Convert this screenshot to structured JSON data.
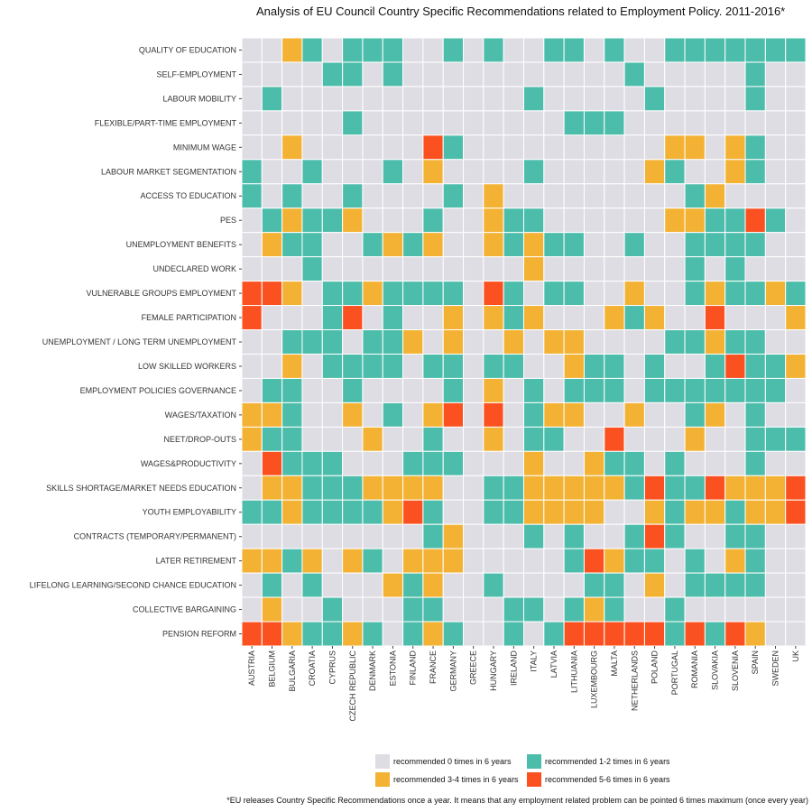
{
  "title": "Analysis of EU Council Country Specific Recommendations related to Employment Policy. 2011-2016*",
  "footnote": "*EU releases Country Specific Recommendations once a year. It means that any employment related problem can be pointed 6 times maximum (once every year)",
  "colors": {
    "0": "#dfdde4",
    "1": "#4dbdab",
    "2": "#f3b233",
    "3": "#fb5121",
    "grid": "#ffffff",
    "tick": "#444444"
  },
  "legend": [
    {
      "level": 0,
      "label": "recommended 0 times in 6 years"
    },
    {
      "level": 1,
      "label": "recommended 1-2 times in 6 years"
    },
    {
      "level": 2,
      "label": "recommended 3-4 times in 6 years"
    },
    {
      "level": 3,
      "label": "recommended 5-6 times in 6 years"
    }
  ],
  "chart_data": {
    "type": "heatmap",
    "title": "Analysis of EU Council Country Specific Recommendations related to Employment Policy. 2011-2016*",
    "x": [
      "AUSTRIA",
      "BELGIUM",
      "BULGARIA",
      "CROATIA",
      "CYPRUS",
      "CZECH REPUBLIC",
      "DENMARK",
      "ESTONIA",
      "FINLAND",
      "FRANCE",
      "GERMANY",
      "GREECE",
      "HUNGARY",
      "IRELAND",
      "ITALY",
      "LATVIA",
      "LITHUANIA",
      "LUXEMBOURG",
      "MALTA",
      "NETHERLANDS",
      "POLAND",
      "PORTUGAL",
      "ROMANIA",
      "SLOVAKIA",
      "SLOVENIA",
      "SPAIN",
      "SWEDEN",
      "UK"
    ],
    "y": [
      "QUALITY OF EDUCATION",
      "SELF-EMPLOYMENT",
      "LABOUR MOBILITY",
      "FLEXIBLE/PART-TIME EMPLOYMENT",
      "MINIMUM WAGE",
      "LABOUR MARKET SEGMENTATION",
      "ACCESS TO EDUCATION",
      "PES",
      "UNEMPLOYMENT BENEFITS",
      "UNDECLARED WORK",
      "VULNERABLE GROUPS EMPLOYMENT",
      "FEMALE PARTICIPATION",
      "UNEMPLOYMENT / LONG TERM UNEMPLOYMENT",
      "LOW SKILLED WORKERS",
      "EMPLOYMENT POLICIES GOVERNANCE",
      "WAGES/TAXATION",
      "NEET/DROP-OUTS",
      "WAGES&PRODUCTIVITY",
      "SKILLS SHORTAGE/MARKET NEEDS EDUCATION",
      "YOUTH EMPLOYABILITY",
      "CONTRACTS (TEMPORARY/PERMANENT)",
      "LATER RETIREMENT",
      "LIFELONG LEARNING/SECOND CHANCE EDUCATION",
      "COLLECTIVE BARGAINING",
      "PENSION REFORM"
    ],
    "levels": [
      "recommended 0 times in 6 years",
      "recommended 1-2 times in 6 years",
      "recommended 3-4 times in 6 years",
      "recommended 5-6 times in 6 years"
    ],
    "values": [
      [
        0,
        0,
        2,
        1,
        0,
        1,
        1,
        1,
        0,
        0,
        1,
        0,
        1,
        0,
        0,
        1,
        1,
        0,
        1,
        0,
        0,
        1,
        1,
        1,
        1,
        1,
        1,
        1
      ],
      [
        0,
        0,
        0,
        0,
        1,
        1,
        0,
        1,
        0,
        0,
        0,
        0,
        0,
        0,
        0,
        0,
        0,
        0,
        0,
        1,
        0,
        0,
        0,
        0,
        0,
        1,
        0,
        0
      ],
      [
        0,
        1,
        0,
        0,
        0,
        0,
        0,
        0,
        0,
        0,
        0,
        0,
        0,
        0,
        1,
        0,
        0,
        0,
        0,
        0,
        1,
        0,
        0,
        0,
        0,
        1,
        0,
        0
      ],
      [
        0,
        0,
        0,
        0,
        0,
        1,
        0,
        0,
        0,
        0,
        0,
        0,
        0,
        0,
        0,
        0,
        1,
        1,
        1,
        0,
        0,
        0,
        0,
        0,
        0,
        0,
        0,
        0
      ],
      [
        0,
        0,
        2,
        0,
        0,
        0,
        0,
        0,
        0,
        3,
        1,
        0,
        0,
        0,
        0,
        0,
        0,
        0,
        0,
        0,
        0,
        2,
        2,
        0,
        2,
        1,
        0,
        0
      ],
      [
        1,
        0,
        0,
        1,
        0,
        0,
        0,
        1,
        0,
        2,
        0,
        0,
        0,
        0,
        1,
        0,
        0,
        0,
        0,
        0,
        2,
        1,
        0,
        0,
        2,
        1,
        0,
        0
      ],
      [
        1,
        0,
        1,
        0,
        0,
        1,
        0,
        0,
        0,
        0,
        1,
        0,
        2,
        0,
        0,
        0,
        0,
        0,
        0,
        0,
        0,
        0,
        1,
        2,
        0,
        0,
        0,
        0
      ],
      [
        0,
        1,
        2,
        1,
        1,
        2,
        0,
        0,
        0,
        1,
        0,
        0,
        2,
        1,
        1,
        0,
        0,
        0,
        0,
        0,
        0,
        2,
        2,
        1,
        1,
        3,
        1,
        0
      ],
      [
        0,
        2,
        1,
        1,
        0,
        0,
        1,
        2,
        1,
        2,
        0,
        0,
        2,
        1,
        2,
        1,
        1,
        0,
        0,
        1,
        0,
        0,
        1,
        1,
        1,
        1,
        0,
        0
      ],
      [
        0,
        0,
        0,
        1,
        0,
        0,
        0,
        0,
        0,
        0,
        0,
        0,
        0,
        0,
        2,
        0,
        0,
        0,
        0,
        0,
        0,
        0,
        1,
        0,
        1,
        0,
        0,
        0
      ],
      [
        3,
        3,
        2,
        0,
        1,
        1,
        2,
        1,
        1,
        1,
        1,
        0,
        3,
        1,
        0,
        1,
        1,
        0,
        0,
        2,
        0,
        0,
        1,
        2,
        1,
        1,
        2,
        1
      ],
      [
        3,
        0,
        0,
        0,
        1,
        3,
        0,
        1,
        0,
        0,
        2,
        0,
        2,
        1,
        2,
        0,
        0,
        0,
        2,
        1,
        2,
        0,
        0,
        3,
        0,
        0,
        0,
        2
      ],
      [
        0,
        0,
        1,
        1,
        1,
        0,
        1,
        1,
        2,
        0,
        2,
        0,
        0,
        2,
        0,
        2,
        2,
        0,
        0,
        0,
        0,
        1,
        1,
        2,
        1,
        1,
        0,
        0
      ],
      [
        0,
        0,
        2,
        0,
        1,
        1,
        1,
        1,
        0,
        1,
        1,
        0,
        1,
        1,
        0,
        0,
        2,
        1,
        1,
        0,
        1,
        0,
        0,
        1,
        3,
        1,
        1,
        2
      ],
      [
        0,
        1,
        1,
        0,
        0,
        1,
        0,
        0,
        0,
        0,
        1,
        0,
        2,
        0,
        1,
        0,
        1,
        1,
        1,
        0,
        1,
        1,
        1,
        1,
        1,
        1,
        1,
        0
      ],
      [
        2,
        2,
        1,
        0,
        0,
        2,
        0,
        1,
        0,
        2,
        3,
        0,
        3,
        0,
        1,
        2,
        2,
        0,
        0,
        2,
        0,
        0,
        1,
        2,
        0,
        1,
        0,
        0
      ],
      [
        2,
        1,
        1,
        0,
        0,
        0,
        2,
        0,
        0,
        1,
        0,
        0,
        2,
        0,
        1,
        1,
        0,
        0,
        3,
        0,
        0,
        0,
        2,
        0,
        0,
        1,
        1,
        1
      ],
      [
        0,
        3,
        1,
        1,
        1,
        0,
        0,
        0,
        1,
        1,
        1,
        0,
        0,
        0,
        2,
        0,
        0,
        2,
        1,
        1,
        0,
        1,
        0,
        0,
        0,
        1,
        0,
        0
      ],
      [
        0,
        2,
        2,
        1,
        1,
        1,
        2,
        2,
        2,
        2,
        0,
        0,
        1,
        1,
        2,
        2,
        2,
        2,
        2,
        1,
        3,
        1,
        1,
        3,
        2,
        2,
        2,
        3
      ],
      [
        1,
        1,
        2,
        1,
        1,
        1,
        1,
        2,
        3,
        1,
        0,
        0,
        1,
        1,
        2,
        2,
        2,
        2,
        0,
        0,
        2,
        1,
        2,
        2,
        1,
        2,
        2,
        3
      ],
      [
        0,
        0,
        0,
        0,
        0,
        0,
        0,
        0,
        0,
        1,
        2,
        0,
        0,
        0,
        1,
        0,
        1,
        0,
        0,
        1,
        3,
        1,
        0,
        0,
        1,
        1,
        0,
        0
      ],
      [
        2,
        2,
        1,
        2,
        0,
        2,
        1,
        0,
        2,
        2,
        2,
        0,
        0,
        0,
        0,
        0,
        1,
        3,
        2,
        1,
        1,
        0,
        1,
        0,
        2,
        1,
        0,
        0
      ],
      [
        0,
        1,
        0,
        1,
        0,
        0,
        0,
        2,
        1,
        2,
        0,
        0,
        1,
        0,
        0,
        0,
        0,
        1,
        1,
        0,
        2,
        0,
        1,
        1,
        1,
        1,
        0,
        0
      ],
      [
        0,
        2,
        0,
        0,
        1,
        0,
        0,
        0,
        1,
        1,
        0,
        0,
        0,
        1,
        1,
        0,
        1,
        2,
        1,
        0,
        0,
        1,
        0,
        0,
        0,
        0,
        0,
        0
      ],
      [
        3,
        3,
        2,
        1,
        1,
        2,
        1,
        0,
        1,
        2,
        1,
        0,
        0,
        1,
        0,
        1,
        3,
        3,
        3,
        3,
        3,
        1,
        3,
        1,
        3,
        2,
        0,
        0
      ]
    ]
  }
}
